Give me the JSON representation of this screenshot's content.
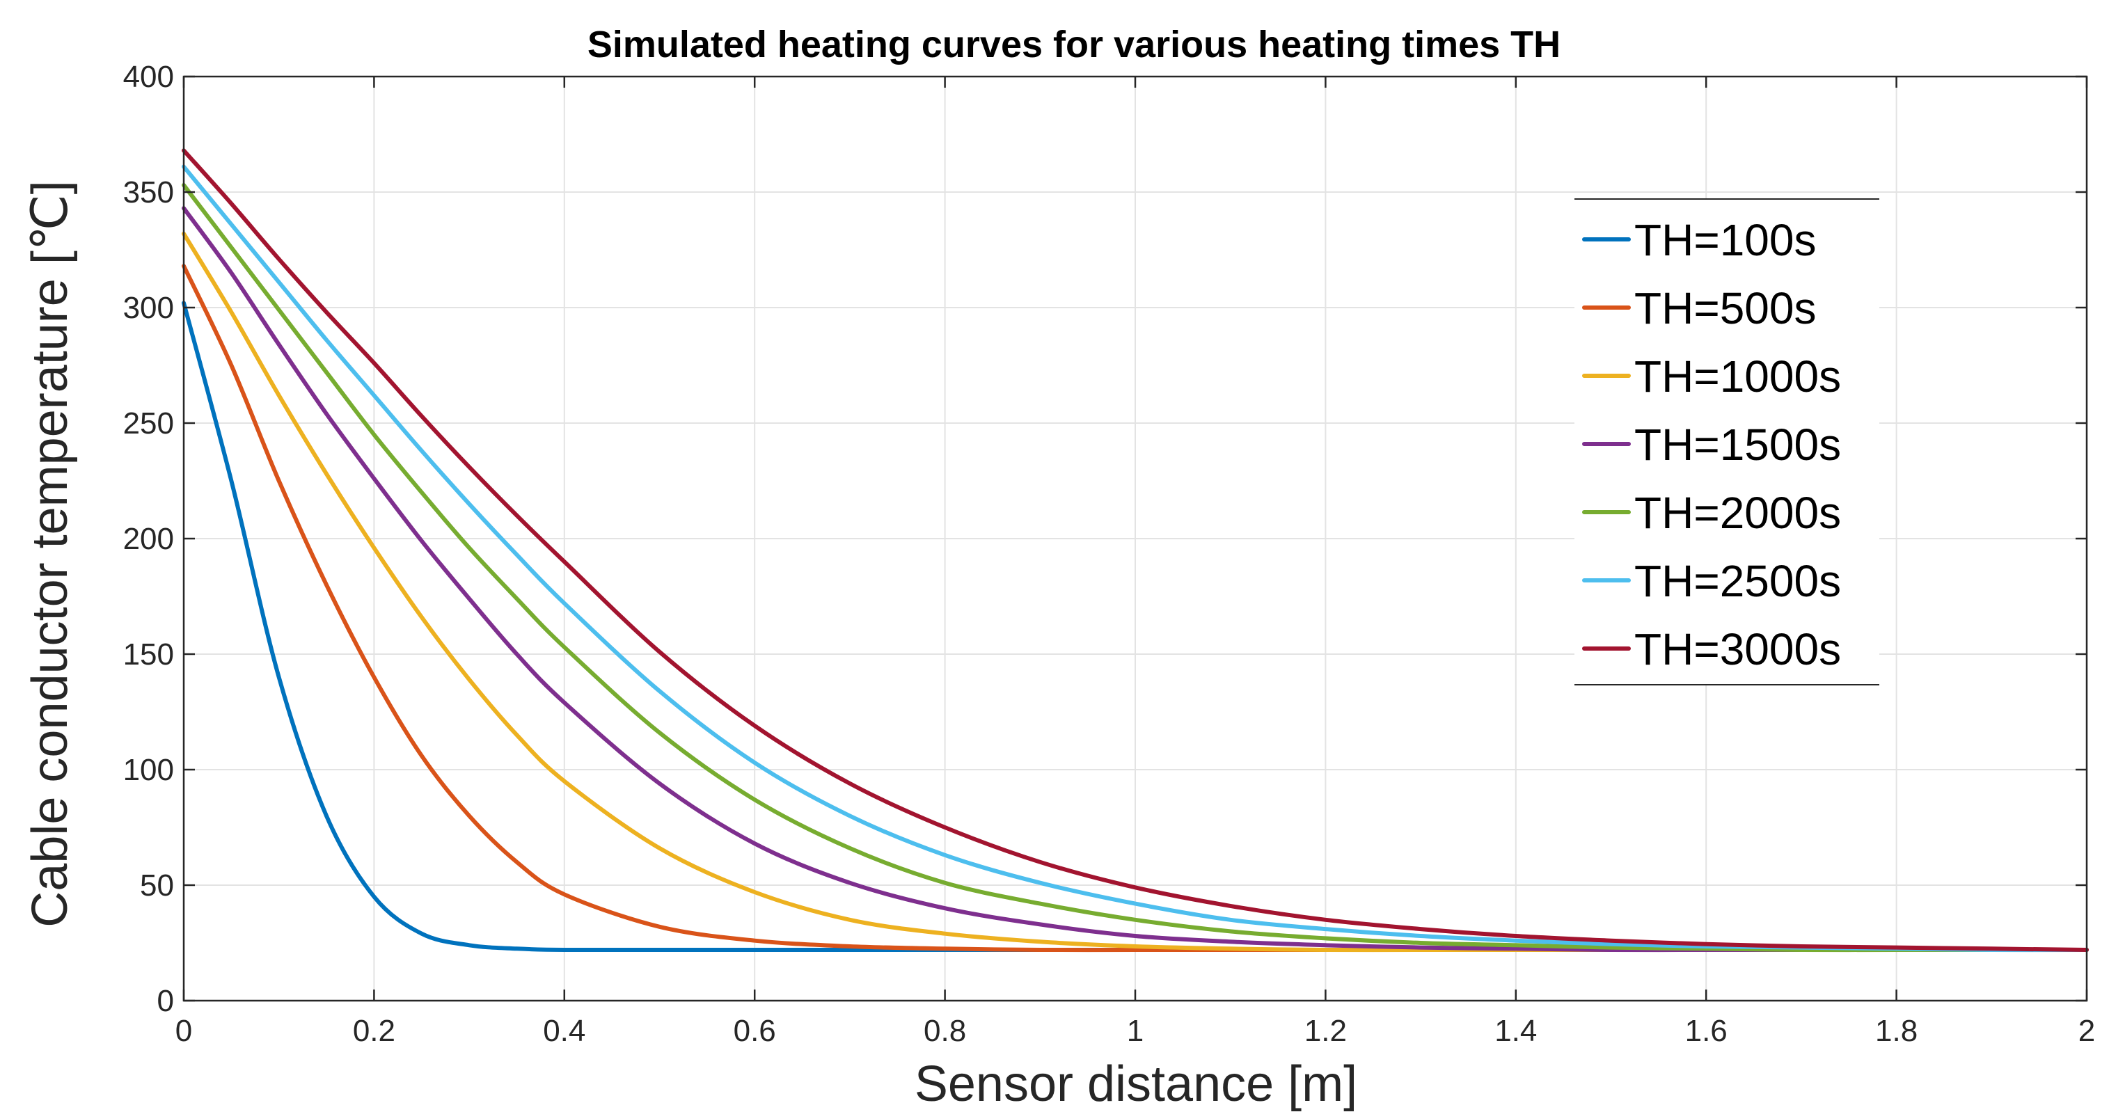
{
  "chart_data": {
    "type": "line",
    "title": "Simulated heating curves for various heating times TH",
    "xlabel": "Sensor distance [m]",
    "ylabel": "Cable conductor temperature [℃]",
    "xlim": [
      0,
      2
    ],
    "ylim": [
      0,
      400
    ],
    "grid": true,
    "legend_position": "top-right",
    "x_ticks": [
      0,
      0.2,
      0.4,
      0.6,
      0.8,
      1,
      1.2,
      1.4,
      1.6,
      1.8,
      2
    ],
    "x_tick_labels": [
      "0",
      "0.2",
      "0.4",
      "0.6",
      "0.8",
      "1",
      "1.2",
      "1.4",
      "1.6",
      "1.8",
      "2"
    ],
    "y_ticks": [
      0,
      50,
      100,
      150,
      200,
      250,
      300,
      350,
      400
    ],
    "y_tick_labels": [
      "0",
      "50",
      "100",
      "150",
      "200",
      "250",
      "300",
      "350",
      "400"
    ],
    "x": [
      0,
      0.05,
      0.1,
      0.15,
      0.2,
      0.25,
      0.3,
      0.35,
      0.4,
      0.5,
      0.6,
      0.7,
      0.8,
      0.9,
      1.0,
      1.1,
      1.2,
      1.3,
      1.4,
      1.5,
      1.6,
      1.7,
      1.8,
      1.9,
      2.0
    ],
    "series": [
      {
        "name": "TH=100s",
        "color": "#0072BD",
        "values": [
          302,
          225,
          140,
          80,
          45,
          29,
          24,
          22.5,
          22,
          22,
          22,
          22,
          22,
          22,
          22,
          22,
          22,
          22,
          22,
          22,
          22,
          22,
          22,
          22,
          22
        ]
      },
      {
        "name": "TH=500s",
        "color": "#D95319",
        "values": [
          318,
          275,
          225,
          180,
          140,
          106,
          80,
          60,
          46,
          32,
          26,
          23.5,
          22.5,
          22,
          22,
          22,
          22,
          22,
          22,
          22,
          22,
          22,
          22,
          22,
          22
        ]
      },
      {
        "name": "TH=1000s",
        "color": "#EDB120",
        "values": [
          332,
          298,
          262,
          228,
          196,
          166,
          139,
          115,
          95,
          66,
          47,
          35,
          29,
          25.5,
          23.5,
          22.5,
          22,
          22,
          22,
          22,
          22,
          22,
          22,
          22,
          22
        ]
      },
      {
        "name": "TH=1500s",
        "color": "#7E2F8E",
        "values": [
          343,
          315,
          284,
          254,
          226,
          199,
          174,
          150,
          129,
          94,
          68,
          51,
          40,
          33,
          28,
          25.5,
          24,
          23,
          22.5,
          22,
          22,
          22,
          22,
          22,
          22
        ]
      },
      {
        "name": "TH=2000s",
        "color": "#77AC30",
        "values": [
          353,
          326,
          299,
          272,
          245,
          220,
          196,
          174,
          153,
          116,
          87,
          66,
          51,
          42,
          35,
          30,
          27,
          25,
          24,
          23,
          22.5,
          22,
          22,
          22,
          22
        ]
      },
      {
        "name": "TH=2500s",
        "color": "#4DBEEE",
        "values": [
          361,
          336,
          311,
          286,
          262,
          238,
          215,
          193,
          172,
          134,
          103,
          80,
          63,
          51,
          42,
          35,
          31,
          28,
          26,
          24.5,
          23.5,
          23,
          22.5,
          22,
          22
        ]
      },
      {
        "name": "TH=3000s",
        "color": "#A2142F",
        "values": [
          368,
          345,
          321,
          298,
          276,
          253,
          231,
          210,
          190,
          151,
          119,
          94,
          75,
          60,
          49,
          41,
          35,
          31,
          28,
          26,
          24.5,
          23.5,
          23,
          22.5,
          22
        ]
      }
    ]
  }
}
